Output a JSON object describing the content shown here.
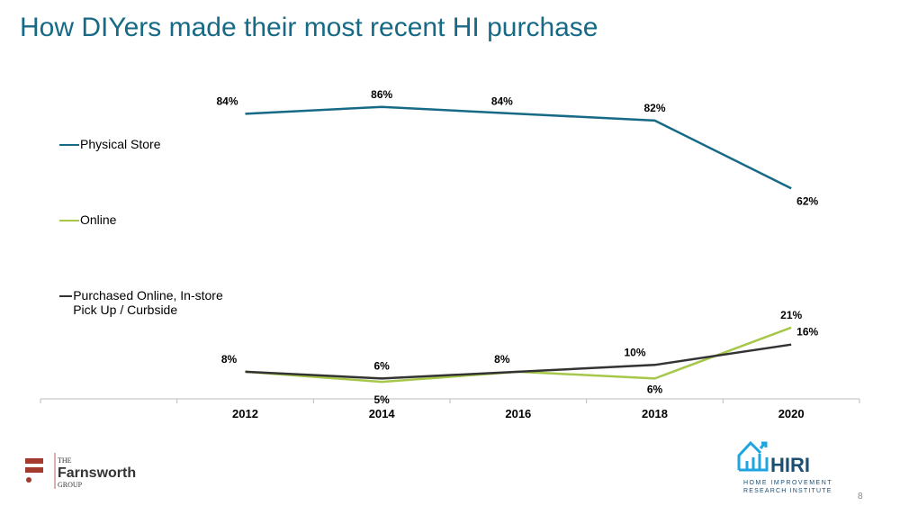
{
  "title": "How DIYers made their most recent HI purchase",
  "page_number": "8",
  "logos": {
    "left": {
      "line1": "THE",
      "line2": "Farnsworth",
      "line3": "GROUP"
    },
    "right": {
      "name": "HIRI",
      "line1": "HOME IMPROVEMENT",
      "line2": "RESEARCH INSTITUTE"
    }
  },
  "chart_data": {
    "type": "line",
    "categories": [
      "",
      "2012",
      "2014",
      "2016",
      "2018",
      "2020"
    ],
    "ylim": [
      0,
      90
    ],
    "grid": false,
    "legend_placement": "left",
    "series": [
      {
        "name": "Physical Store",
        "color": "#176a86",
        "values": [
          null,
          84,
          86,
          84,
          82,
          62
        ],
        "labels": [
          "",
          "84%",
          "86%",
          "84%",
          "82%",
          "62%"
        ]
      },
      {
        "name": "Online",
        "color": "#a6c74a",
        "values": [
          null,
          8,
          5,
          8,
          6,
          21
        ],
        "labels": [
          "",
          "8%",
          "5%",
          "8%",
          "6%",
          "21%"
        ]
      },
      {
        "name": "Purchased Online, In-store Pick Up / Curbside",
        "color": "#333333",
        "values": [
          null,
          8,
          6,
          8,
          10,
          16
        ],
        "labels": [
          "",
          "8%",
          "6%",
          "8%",
          "10%",
          "16%"
        ]
      }
    ]
  }
}
